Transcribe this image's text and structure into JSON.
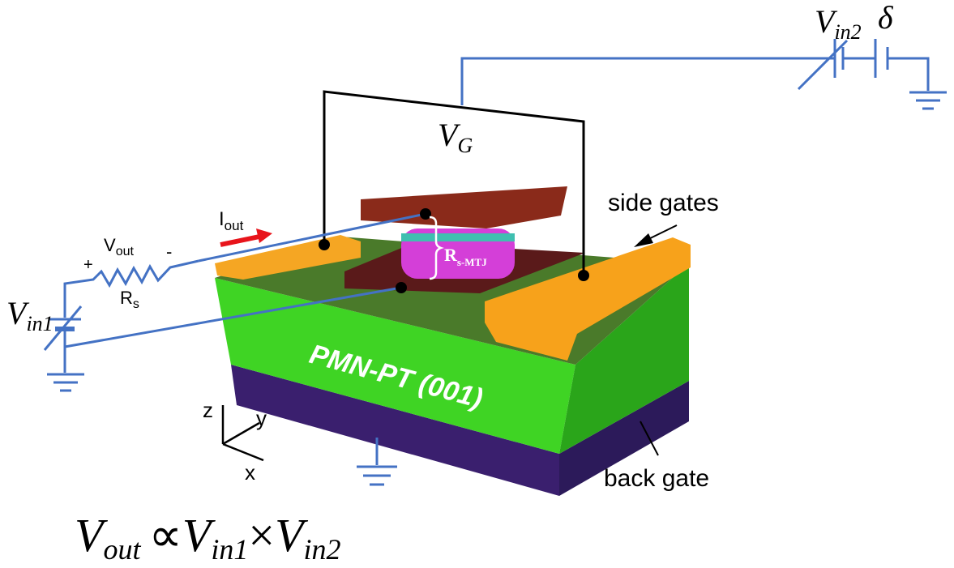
{
  "circuit": {
    "v_in2": {
      "symbol": "V",
      "sub": "in2"
    },
    "delta": "δ",
    "v_g": {
      "symbol": "V",
      "sub": "G"
    },
    "i_out": {
      "symbol": "I",
      "sub": "out"
    },
    "v_out": {
      "symbol": "V",
      "sub": "out"
    },
    "plus": "+",
    "minus": "-",
    "r_s": {
      "symbol": "R",
      "sub": "s"
    },
    "v_in1": {
      "symbol": "V",
      "sub": "in1"
    }
  },
  "device": {
    "side_gates": "side gates",
    "r_mtj": {
      "symbol": "R",
      "sub": "s-MTJ"
    },
    "substrate": "PMN-PT (001)",
    "back_gate": "back gate"
  },
  "axes": {
    "z": "z",
    "y": "y",
    "x": "x"
  },
  "equation": {
    "lhs": {
      "symbol": "V",
      "sub": "out"
    },
    "relation": "∝",
    "term1": {
      "symbol": "V",
      "sub": "in1"
    },
    "times": "×",
    "term2": {
      "symbol": "V",
      "sub": "in2"
    }
  }
}
